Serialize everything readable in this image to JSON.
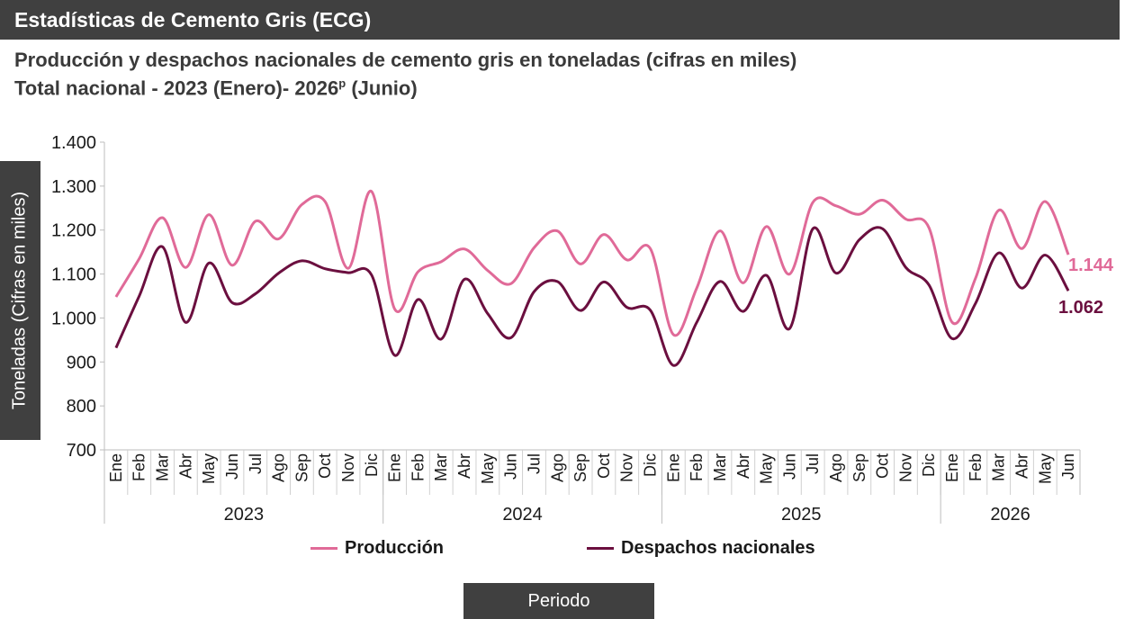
{
  "header": {
    "title": "Estadísticas de Cemento Gris (ECG)"
  },
  "chart_title": "Producción y despachos nacionales de cemento gris en toneladas (cifras en miles)",
  "chart_subtitle_main": "Total nacional - 2023 (Enero)- 2026",
  "chart_subtitle_sup": "p",
  "chart_subtitle_tail": " (Junio)",
  "colors": {
    "produccion": "#e06a98",
    "despachos": "#6b0f3f",
    "dark_box": "#404040"
  },
  "chart_data": {
    "type": "line",
    "ylabel": "Toneladas (Cifras en miles)",
    "xlabel": "Periodo",
    "ylim": [
      700,
      1400
    ],
    "yticks": [
      700,
      800,
      900,
      1000,
      1100,
      1200,
      1300,
      1400
    ],
    "ytick_labels": [
      "700",
      "800",
      "900",
      "1.000",
      "1.100",
      "1.200",
      "1.300",
      "1.400"
    ],
    "categories": [
      "Ene",
      "Feb",
      "Mar",
      "Abr",
      "May",
      "Jun",
      "Jul",
      "Ago",
      "Sep",
      "Oct",
      "Nov",
      "Dic",
      "Ene",
      "Feb",
      "Mar",
      "Abr",
      "May",
      "Jun",
      "Jul",
      "Ago",
      "Sep",
      "Oct",
      "Nov",
      "Dic",
      "Ene",
      "Feb",
      "Mar",
      "Abr",
      "May",
      "Jun",
      "Jul",
      "Ago",
      "Sep",
      "Oct",
      "Nov",
      "Dic",
      "Ene",
      "Feb",
      "Mar",
      "Abr",
      "May",
      "Jun"
    ],
    "years": [
      {
        "label": "2023",
        "count": 12
      },
      {
        "label": "2024",
        "count": 12
      },
      {
        "label": "2025",
        "count": 12
      },
      {
        "label": "2026",
        "count": 6
      }
    ],
    "series": [
      {
        "name": "Producción",
        "values": [
          1048,
          1135,
          1228,
          1115,
          1235,
          1120,
          1220,
          1180,
          1258,
          1265,
          1113,
          1288,
          1020,
          1105,
          1128,
          1157,
          1108,
          1078,
          1160,
          1198,
          1123,
          1190,
          1132,
          1158,
          962,
          1068,
          1198,
          1080,
          1208,
          1100,
          1263,
          1255,
          1236,
          1268,
          1225,
          1205,
          990,
          1090,
          1245,
          1158,
          1265,
          1144
        ],
        "end_label": "1.144"
      },
      {
        "name": "Despachos nacionales",
        "values": [
          932,
          1050,
          1162,
          990,
          1125,
          1035,
          1055,
          1102,
          1130,
          1112,
          1103,
          1098,
          915,
          1042,
          952,
          1088,
          1010,
          955,
          1060,
          1083,
          1017,
          1082,
          1024,
          1018,
          892,
          990,
          1083,
          1015,
          1097,
          976,
          1203,
          1102,
          1178,
          1203,
          1115,
          1075,
          953,
          1033,
          1148,
          1068,
          1143,
          1062
        ],
        "end_label": "1.062"
      }
    ],
    "legend_position": "bottom",
    "grid": false
  }
}
